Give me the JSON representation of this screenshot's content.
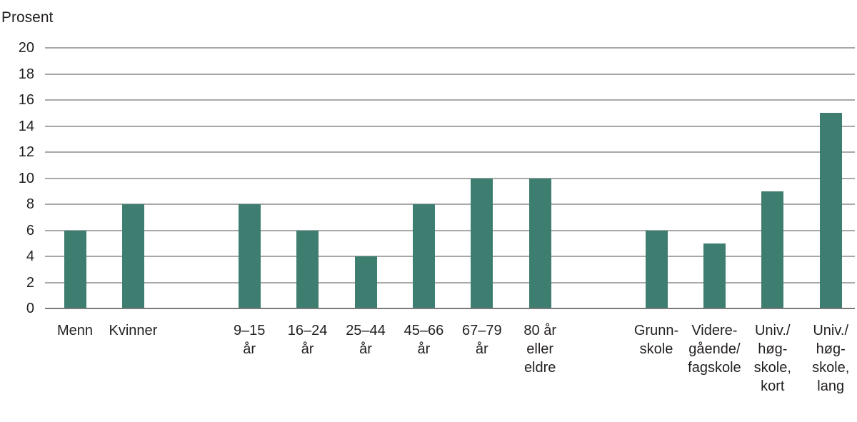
{
  "chart_data": {
    "type": "bar",
    "title": "",
    "ylabel": "Prosent",
    "xlabel": "",
    "ylim": [
      0,
      20
    ],
    "ytick_step": 2,
    "grid": true,
    "legend_position": "none",
    "colors": {
      "bar": "#3E7E70",
      "gridline": "#A8A8A8",
      "axis_line": "#7A7A7A",
      "text": "#231F20",
      "background": "#FFFFFF"
    },
    "groups": [
      {
        "bars": [
          {
            "label": "Menn",
            "value": 6
          },
          {
            "label": "Kvinner",
            "value": 8
          }
        ]
      },
      {
        "bars": [
          {
            "label": "9–15\når",
            "value": 8
          },
          {
            "label": "16–24\når",
            "value": 6
          },
          {
            "label": "25–44\når",
            "value": 4
          },
          {
            "label": "45–66\når",
            "value": 8
          },
          {
            "label": "67–79\når",
            "value": 10
          },
          {
            "label": "80 år\neller\neldre",
            "value": 10
          }
        ]
      },
      {
        "bars": [
          {
            "label": "Grunn-\nskole",
            "value": 6
          },
          {
            "label": "Videre-\ngående/\nfagskole",
            "value": 5
          },
          {
            "label": "Univ./\nhøg-\nskole,\nkort",
            "value": 9
          },
          {
            "label": "Univ./\nhøg-\nskole,\nlang",
            "value": 15
          }
        ]
      }
    ]
  }
}
